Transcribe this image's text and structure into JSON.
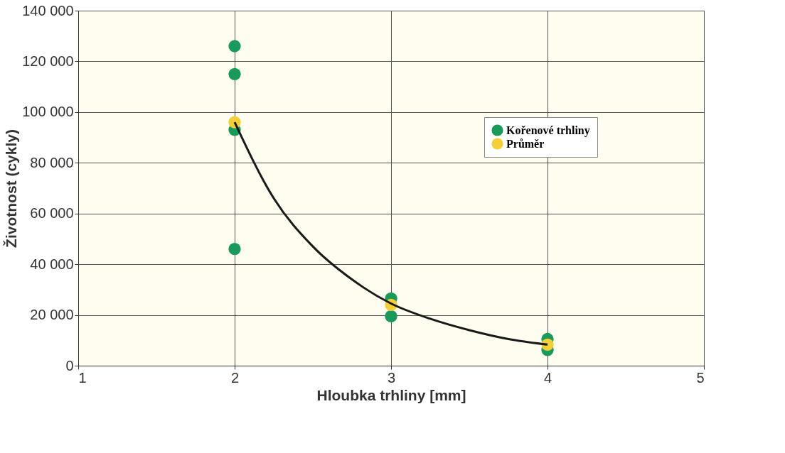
{
  "chart_data": {
    "type": "scatter",
    "xlabel": "Hloubka trhliny [mm]",
    "ylabel": "Životnost (cykly)",
    "series": [
      {
        "name": "Kořenové trhliny",
        "color": "#1a9a5a",
        "x": [
          2,
          2,
          2,
          2,
          3,
          3,
          4,
          4
        ],
        "values": [
          126000,
          115000,
          93000,
          46000,
          26500,
          19500,
          10500,
          6200
        ]
      },
      {
        "name": "Průměr",
        "color": "#f5cf3a",
        "x": [
          2,
          3,
          4
        ],
        "values": [
          96000,
          24000,
          8300
        ]
      },
      {
        "type": "line",
        "marker": "none",
        "line_style": "solid",
        "color": "#1a1a1a",
        "x": [
          2,
          2.25,
          2.5,
          2.75,
          3,
          3.25,
          3.5,
          3.75,
          4
        ],
        "values": [
          96000,
          66000,
          47000,
          34000,
          24500,
          18500,
          14000,
          10500,
          8300
        ]
      }
    ],
    "xlim": [
      1,
      5
    ],
    "xticks": [
      1,
      2,
      3,
      4,
      5
    ],
    "ylim": [
      0,
      140000
    ],
    "yticks": [
      {
        "value": 0,
        "label": "0"
      },
      {
        "value": 20000,
        "label": "20 000"
      },
      {
        "value": 40000,
        "label": "40 000"
      },
      {
        "value": 60000,
        "label": "60 000"
      },
      {
        "value": 80000,
        "label": "80 000"
      },
      {
        "value": 100000,
        "label": "100 000"
      },
      {
        "value": 120000,
        "label": "120 000"
      },
      {
        "value": 140000,
        "label": "140 000"
      }
    ],
    "grid": true,
    "legend": "top right",
    "marker": "circle"
  }
}
